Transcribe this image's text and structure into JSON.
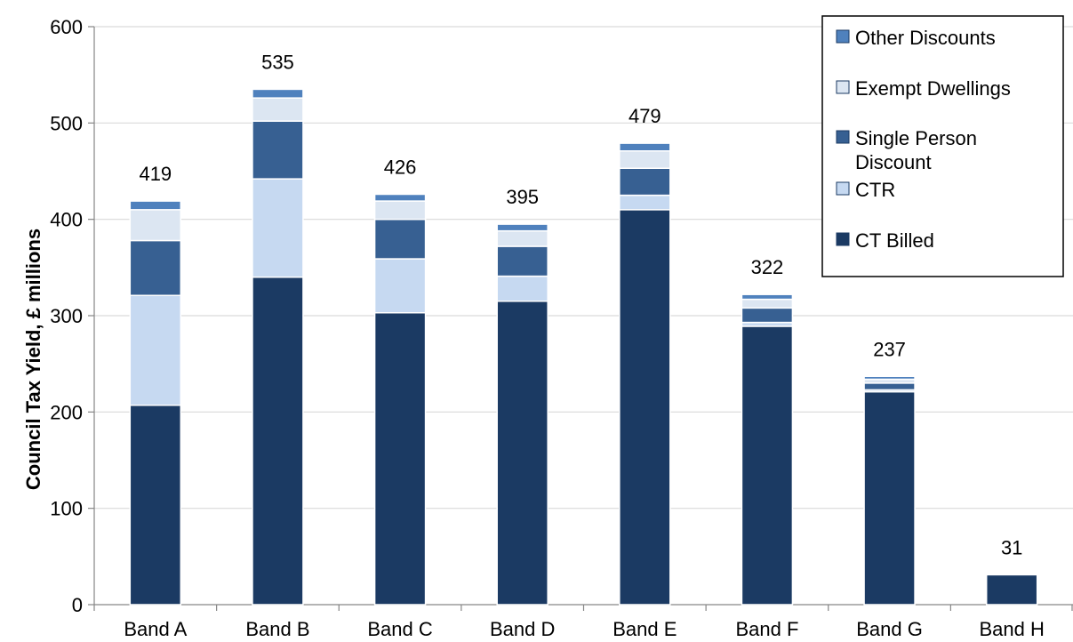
{
  "chart_data": {
    "type": "bar",
    "stacked": true,
    "title": "",
    "xlabel": "",
    "ylabel": "Council Tax Yield, £ millions",
    "ylim": [
      0,
      600
    ],
    "yticks": [
      0,
      100,
      200,
      300,
      400,
      500,
      600
    ],
    "grid": true,
    "legend_position": "top-right",
    "categories": [
      "Band A",
      "Band B",
      "Band C",
      "Band D",
      "Band E",
      "Band F",
      "Band G",
      "Band H"
    ],
    "totals": [
      "419",
      "535",
      "426",
      "395",
      "479",
      "322",
      "237",
      "31"
    ],
    "series": [
      {
        "name": "CT Billed",
        "color": "#1b3a63",
        "values": [
          207,
          340,
          303,
          315,
          410,
          289,
          221,
          31
        ]
      },
      {
        "name": "CTR",
        "color": "#c6d9f1",
        "values": [
          114,
          102,
          56,
          26,
          15,
          4,
          2,
          0
        ]
      },
      {
        "name": "Single Person Discount",
        "color": "#376092",
        "values": [
          57,
          60,
          41,
          31,
          28,
          15,
          7,
          0
        ]
      },
      {
        "name": "Exempt Dwellings",
        "color": "#dce6f2",
        "values": [
          32,
          24,
          19,
          16,
          18,
          9,
          4,
          0
        ]
      },
      {
        "name": "Other Discounts",
        "color": "#4f81bd",
        "values": [
          9,
          9,
          7,
          7,
          8,
          5,
          3,
          0
        ]
      }
    ],
    "legend_order": [
      {
        "label": "Other Discounts",
        "color": "#4f81bd"
      },
      {
        "label": "Exempt Dwellings",
        "color": "#dce6f2"
      },
      {
        "label": "Single Person Discount",
        "color": "#376092"
      },
      {
        "label": "CTR",
        "color": "#c6d9f1"
      },
      {
        "label": "CT Billed",
        "color": "#1b3a63"
      }
    ]
  }
}
